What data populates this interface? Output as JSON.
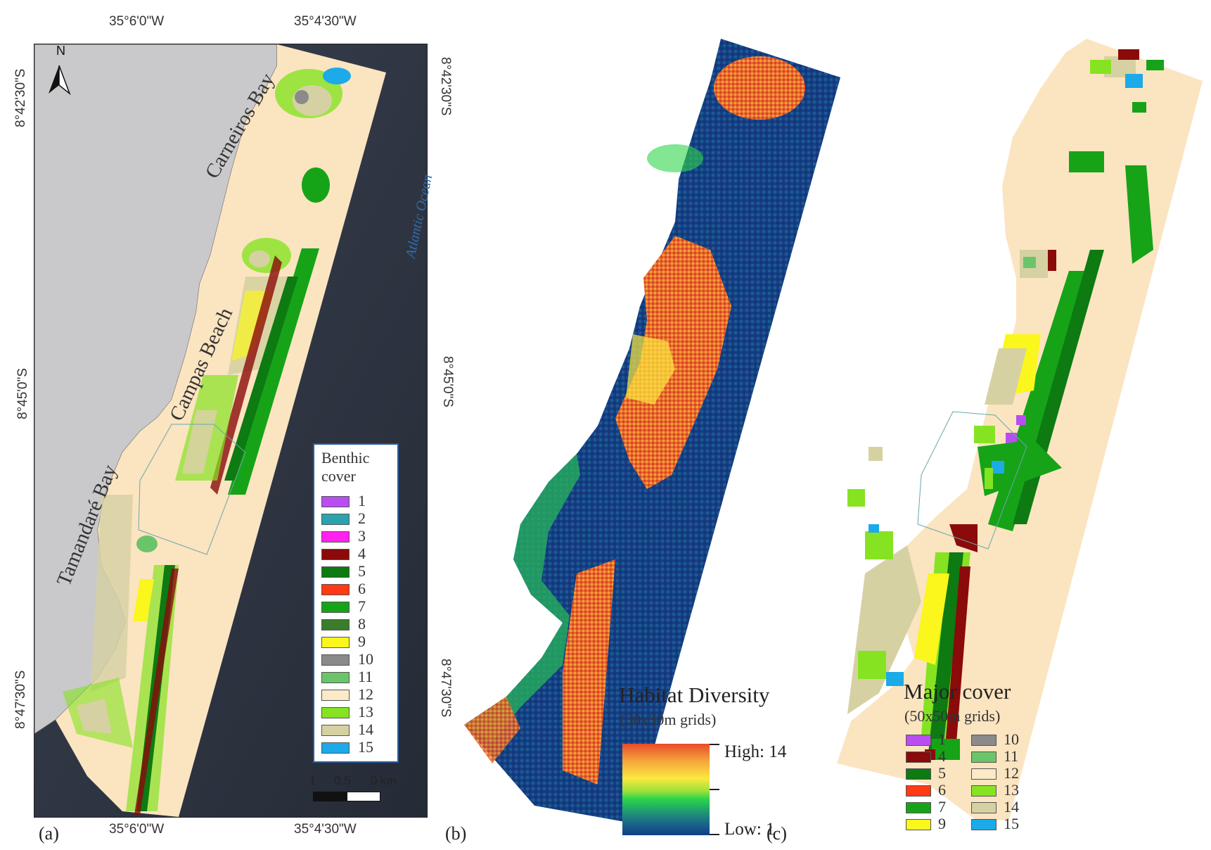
{
  "panels": {
    "a": {
      "label": "(a)",
      "coords": {
        "top_left": "35°6'0\"W",
        "top_right": "35°4'30\"W",
        "bottom_left": "35°6'0\"W",
        "bottom_right": "35°4'30\"W",
        "left_top": "8°42'30\"S",
        "left_mid": "8°45'0\"S",
        "left_bot": "8°47'30\"S",
        "right_top": "8°42'30\"S",
        "right_mid": "8°45'0\"S",
        "right_bot": "8°47'30\"S"
      },
      "north_label": "N",
      "place_names": {
        "carneiros": "Carneiros Bay",
        "campas": "Campas Beach",
        "tamandare": "Tamandaré Bay",
        "ocean": "Atlantic Ocean"
      },
      "legend": {
        "title_line1": "Benthic",
        "title_line2": "cover",
        "items": [
          {
            "label": "1",
            "color": "#b84ef2"
          },
          {
            "label": "2",
            "color": "#2aa3b0"
          },
          {
            "label": "3",
            "color": "#ff22ee"
          },
          {
            "label": "4",
            "color": "#8b0a0a"
          },
          {
            "label": "5",
            "color": "#0d7a12"
          },
          {
            "label": "6",
            "color": "#ff3a14"
          },
          {
            "label": "7",
            "color": "#16a318"
          },
          {
            "label": "8",
            "color": "#3a7d2a"
          },
          {
            "label": "9",
            "color": "#fbf61c"
          },
          {
            "label": "10",
            "color": "#8a8a8a"
          },
          {
            "label": "11",
            "color": "#6cc46a"
          },
          {
            "label": "12",
            "color": "#fbe9c8"
          },
          {
            "label": "13",
            "color": "#86e322"
          },
          {
            "label": "14",
            "color": "#d6d1a2"
          },
          {
            "label": "15",
            "color": "#1caae8"
          }
        ]
      },
      "scale": {
        "l1": "1",
        "l2": "0.5",
        "l3": "0 km"
      }
    },
    "b": {
      "label": "(b)",
      "legend_title": "Habitat Diversity",
      "legend_subtitle": "(30x30m grids)",
      "high_label": "High: 14",
      "low_label": "Low: 1"
    },
    "c": {
      "label": "(c)",
      "legend_title": "Major cover",
      "legend_subtitle": "(50x50m grids)",
      "items": [
        {
          "label": "1",
          "color": "#b84ef2"
        },
        {
          "label": "4",
          "color": "#8b0a0a"
        },
        {
          "label": "5",
          "color": "#0d7a12"
        },
        {
          "label": "6",
          "color": "#ff3a14"
        },
        {
          "label": "7",
          "color": "#16a318"
        },
        {
          "label": "9",
          "color": "#fbf61c"
        },
        {
          "label": "10",
          "color": "#8a8a8a"
        },
        {
          "label": "11",
          "color": "#6cc46a"
        },
        {
          "label": "12",
          "color": "#fbe9c8"
        },
        {
          "label": "13",
          "color": "#86e322"
        },
        {
          "label": "14",
          "color": "#d6d1a2"
        },
        {
          "label": "15",
          "color": "#1caae8"
        }
      ]
    }
  }
}
